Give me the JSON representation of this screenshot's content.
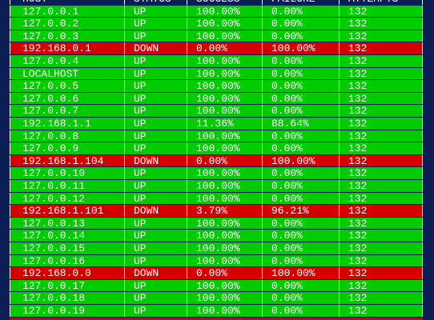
{
  "table": {
    "columns": [
      "HOST",
      "STATUS",
      "SUCCESS",
      "FAILURE",
      "ATTEMPTS"
    ],
    "rows": [
      [
        "127.0.0.1",
        "UP",
        "100.00%",
        "0.00%",
        "132"
      ],
      [
        "127.0.0.2",
        "UP",
        "100.00%",
        "0.00%",
        "132"
      ],
      [
        "127.0.0.3",
        "UP",
        "100.00%",
        "0.00%",
        "132"
      ],
      [
        "192.168.0.1",
        "DOWN",
        "0.00%",
        "100.00%",
        "132"
      ],
      [
        "127.0.0.4",
        "UP",
        "100.00%",
        "0.00%",
        "132"
      ],
      [
        "LOCALHOST",
        "UP",
        "100.00%",
        "0.00%",
        "132"
      ],
      [
        "127.0.0.5",
        "UP",
        "100.00%",
        "0.00%",
        "132"
      ],
      [
        "127.0.0.6",
        "UP",
        "100.00%",
        "0.00%",
        "132"
      ],
      [
        "127.0.0.7",
        "UP",
        "100.00%",
        "0.00%",
        "132"
      ],
      [
        "192.168.1.1",
        "UP",
        "11.36%",
        "88.64%",
        "132"
      ],
      [
        "127.0.0.8",
        "UP",
        "100.00%",
        "0.00%",
        "132"
      ],
      [
        "127.0.0.9",
        "UP",
        "100.00%",
        "0.00%",
        "132"
      ],
      [
        "192.168.1.104",
        "DOWN",
        "0.00%",
        "100.00%",
        "132"
      ],
      [
        "127.0.0.10",
        "UP",
        "100.00%",
        "0.00%",
        "132"
      ],
      [
        "127.0.0.11",
        "UP",
        "100.00%",
        "0.00%",
        "132"
      ],
      [
        "127.0.0.12",
        "UP",
        "100.00%",
        "0.00%",
        "132"
      ],
      [
        "192.168.1.101",
        "DOWN",
        "3.79%",
        "96.21%",
        "132"
      ],
      [
        "127.0.0.13",
        "UP",
        "100.00%",
        "0.00%",
        "132"
      ],
      [
        "127.0.0.14",
        "UP",
        "100.00%",
        "0.00%",
        "132"
      ],
      [
        "127.0.0.15",
        "UP",
        "100.00%",
        "0.00%",
        "132"
      ],
      [
        "127.0.0.16",
        "UP",
        "100.00%",
        "0.00%",
        "132"
      ],
      [
        "192.168.0.0",
        "DOWN",
        "0.00%",
        "100.00%",
        "132"
      ],
      [
        "127.0.0.17",
        "UP",
        "100.00%",
        "0.00%",
        "132"
      ],
      [
        "127.0.0.18",
        "UP",
        "100.00%",
        "0.00%",
        "132"
      ],
      [
        "127.0.0.19",
        "UP",
        "100.00%",
        "0.00%",
        "132"
      ]
    ]
  }
}
